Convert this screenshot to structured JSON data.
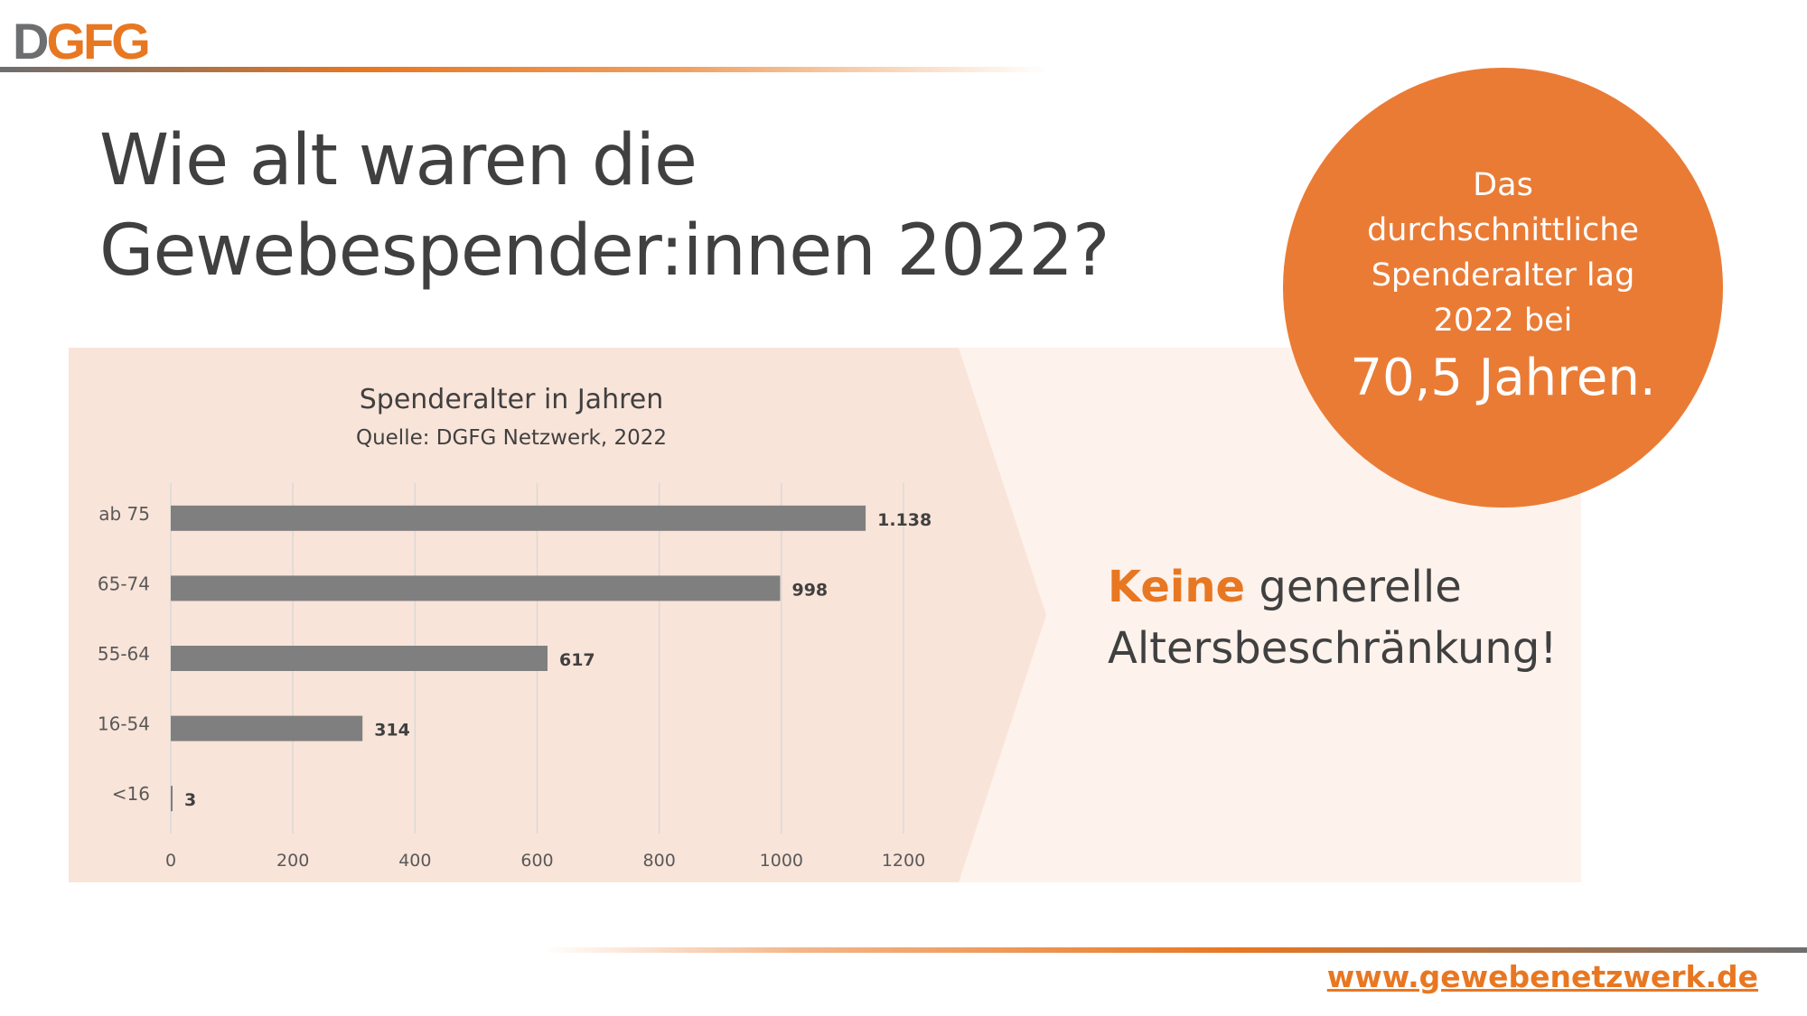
{
  "logo": {
    "part1": "D",
    "part2": "GFG"
  },
  "title": {
    "line1": "Wie alt waren die",
    "line2": "Gewebespender:innen 2022?"
  },
  "callout": {
    "text_lines": [
      "Das",
      "durchschnittliche",
      "Spenderalter lag",
      "2022 bei"
    ],
    "value": "70,5 Jahren.",
    "color": "#ea7b35"
  },
  "headline": {
    "accent": "Keine",
    "rest1": " generelle",
    "line2": "Altersbeschränkung!"
  },
  "footer": {
    "url": "www.gewebenetzwerk.de"
  },
  "colors": {
    "accent": "#e87722",
    "bar": "#7f7f7f",
    "panel_left": "#f9e4d9",
    "panel_right": "#fdf2ec"
  },
  "chart_data": {
    "type": "bar",
    "orientation": "horizontal",
    "title": "Spenderalter in Jahren",
    "subtitle": "Quelle: DGFG Netzwerk, 2022",
    "categories": [
      "ab 75",
      "65-74",
      "55-64",
      "16-54",
      "<16"
    ],
    "values": [
      1138,
      998,
      617,
      314,
      3
    ],
    "value_labels": [
      "1.138",
      "998",
      "617",
      "314",
      "3"
    ],
    "xlim": [
      0,
      1200
    ],
    "xticks": [
      0,
      200,
      400,
      600,
      800,
      1000,
      1200
    ],
    "xtick_labels": [
      "0",
      "200",
      "400",
      "600",
      "800",
      "1000",
      "1200"
    ],
    "grid": true,
    "xlabel": "",
    "ylabel": ""
  }
}
